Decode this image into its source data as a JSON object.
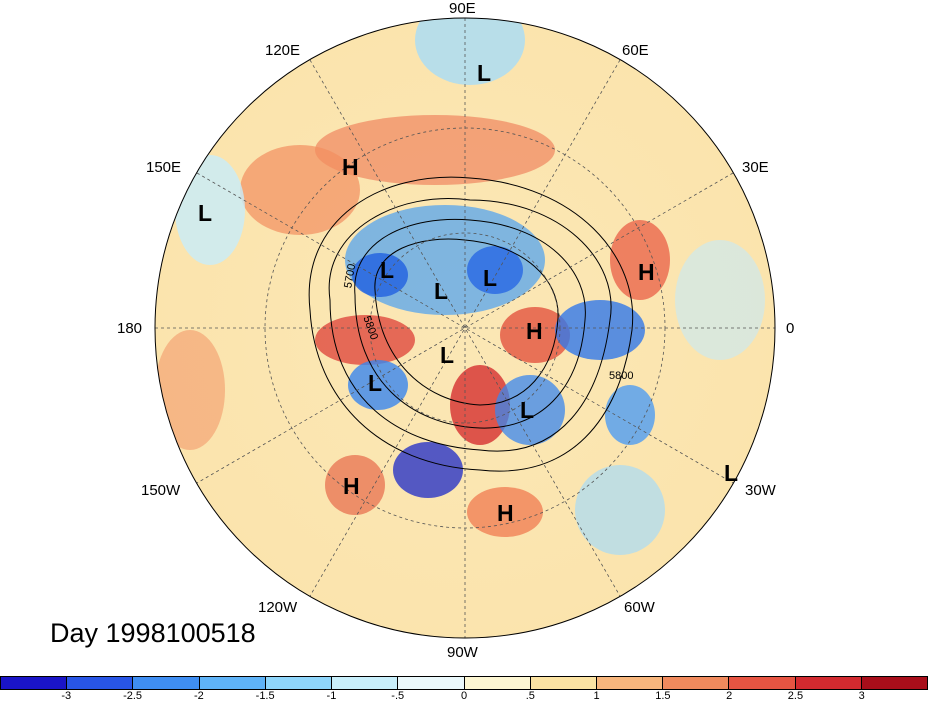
{
  "title": "Day 1998100518",
  "longitude_labels": {
    "top": "90E",
    "upper_left": "120E",
    "upper_right": "60E",
    "left_upper": "150E",
    "right_upper": "30E",
    "left": "180",
    "right": "0",
    "left_lower": "150W",
    "right_lower": "30W",
    "lower_left": "120W",
    "lower_right": "60W",
    "bottom": "90W"
  },
  "pressure_centers": [
    {
      "label": "L"
    },
    {
      "label": "H"
    },
    {
      "label": "L"
    },
    {
      "label": "L"
    },
    {
      "label": "L"
    },
    {
      "label": "L"
    },
    {
      "label": "H"
    },
    {
      "label": "H"
    },
    {
      "label": "L"
    },
    {
      "label": "L"
    },
    {
      "label": "L"
    },
    {
      "label": "H"
    },
    {
      "label": "H"
    },
    {
      "label": "L"
    }
  ],
  "contour_labels": [
    "5700",
    "5800",
    "5800"
  ],
  "colorbar": {
    "colors": [
      "#1a14c8",
      "#2855e6",
      "#3f8ef2",
      "#5fb3f7",
      "#8fd6fb",
      "#c8effb",
      "#eaf8fb",
      "#fcf6d2",
      "#fbe3a3",
      "#f7b67d",
      "#f08a5d",
      "#e65442",
      "#d22a2f",
      "#a80e1a"
    ],
    "ticks": [
      "-3",
      "-2.5",
      "-2",
      "-1.5",
      "-1",
      "-.5",
      "0",
      ".5",
      "1",
      "1.5",
      "2",
      "2.5",
      "3"
    ]
  }
}
